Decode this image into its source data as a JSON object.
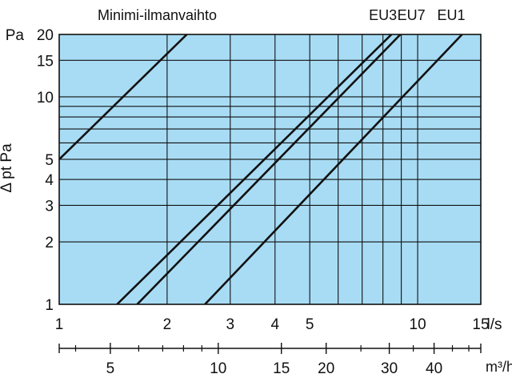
{
  "chart_data": {
    "type": "line",
    "title": "Minimi-ilmanvaihto",
    "ylabel": "Δ pt Pa",
    "y_unit_label": "Pa",
    "x_unit_label": "l/s",
    "x2_unit_label": "m³/h",
    "x_scale": "log",
    "y_scale": "log",
    "xlim": [
      1,
      15
    ],
    "ylim": [
      1,
      20
    ],
    "x2lim": [
      3.6,
      54
    ],
    "grid": true,
    "plot_background": "#a8dcf4",
    "x_ticks": [
      {
        "value": 1,
        "label": "1"
      },
      {
        "value": 2,
        "label": "2"
      },
      {
        "value": 3,
        "label": "3"
      },
      {
        "value": 4,
        "label": "4"
      },
      {
        "value": 5,
        "label": "5"
      },
      {
        "value": 10,
        "label": "10"
      },
      {
        "value": 15,
        "label": "15"
      }
    ],
    "x_grid": [
      2,
      3,
      4,
      5,
      6,
      7,
      8,
      9,
      10
    ],
    "y_ticks": [
      {
        "value": 1,
        "label": "1"
      },
      {
        "value": 2,
        "label": "2"
      },
      {
        "value": 3,
        "label": "3"
      },
      {
        "value": 4,
        "label": "4"
      },
      {
        "value": 5,
        "label": "5"
      },
      {
        "value": 10,
        "label": "10"
      },
      {
        "value": 15,
        "label": "15"
      },
      {
        "value": 20,
        "label": "20"
      }
    ],
    "y_grid": [
      2,
      3,
      4,
      5,
      6,
      7,
      8,
      9,
      10,
      15
    ],
    "x2_ticks": [
      {
        "value": 5,
        "label": "5"
      },
      {
        "value": 10,
        "label": "10"
      },
      {
        "value": 15,
        "label": "15"
      },
      {
        "value": 20,
        "label": "20"
      },
      {
        "value": 30,
        "label": "30"
      },
      {
        "value": 40,
        "label": "40"
      }
    ],
    "x2_minor": [
      4,
      6,
      7,
      8,
      9,
      25,
      35,
      45,
      50
    ],
    "series": [
      {
        "name": "Minimi-ilmanvaihto",
        "x": [
          1,
          2.27
        ],
        "y": [
          5,
          20
        ]
      },
      {
        "name": "EU3",
        "x": [
          1.45,
          8.45
        ],
        "y": [
          1,
          20
        ]
      },
      {
        "name": "EU7",
        "x": [
          1.65,
          8.95
        ],
        "y": [
          1,
          20
        ]
      },
      {
        "name": "EU1",
        "x": [
          2.55,
          13.3
        ],
        "y": [
          1,
          20
        ]
      }
    ],
    "series_labels": [
      {
        "text": "EU3",
        "x": 8.0
      },
      {
        "text": "EU7",
        "x": 9.6
      },
      {
        "text": "EU1",
        "x": 12.4
      }
    ]
  }
}
